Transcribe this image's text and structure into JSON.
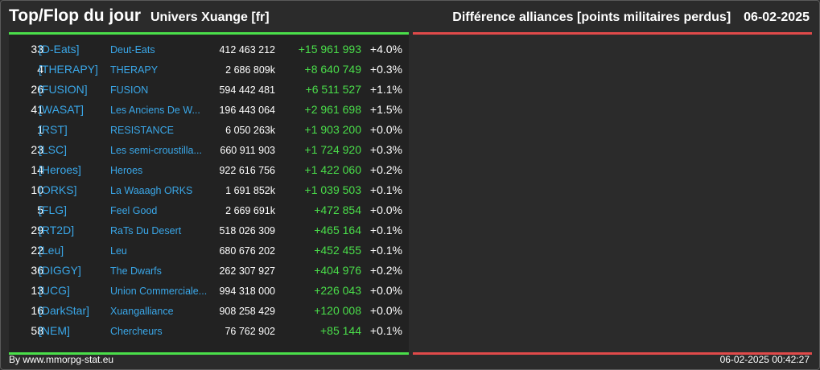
{
  "header": {
    "title": "Top/Flop du jour",
    "universe": "Univers Xuange [fr]",
    "subtitle": "Différence alliances [points militaires perdus]",
    "date": "06-02-2025"
  },
  "colors": {
    "accent_top": "#4ade4a",
    "accent_flop": "#e04a4a",
    "link": "#3aa7e8",
    "background": "#2b2b2b"
  },
  "top_rows": [
    {
      "rank": "33",
      "tag": "[D-Eats]",
      "name": "Deut-Eats",
      "points": "412 463 212",
      "diff": "+15 961 993",
      "pct": "+4.0%"
    },
    {
      "rank": "4",
      "tag": "[THERAPY]",
      "name": "THERAPY",
      "points": "2 686 809k",
      "diff": "+8 640 749",
      "pct": "+0.3%"
    },
    {
      "rank": "26",
      "tag": "[FUSION]",
      "name": "FUSION",
      "points": "594 442 481",
      "diff": "+6 511 527",
      "pct": "+1.1%"
    },
    {
      "rank": "41",
      "tag": "[WASAT]",
      "name": "Les Anciens De W...",
      "points": "196 443 064",
      "diff": "+2 961 698",
      "pct": "+1.5%"
    },
    {
      "rank": "1",
      "tag": "[RST]",
      "name": "RESISTANCE",
      "points": "6 050 263k",
      "diff": "+1 903 200",
      "pct": "+0.0%"
    },
    {
      "rank": "23",
      "tag": "[LSC]",
      "name": "Les semi-croustilla...",
      "points": "660 911 903",
      "diff": "+1 724 920",
      "pct": "+0.3%"
    },
    {
      "rank": "14",
      "tag": "[Heroes]",
      "name": "Heroes",
      "points": "922 616 756",
      "diff": "+1 422 060",
      "pct": "+0.2%"
    },
    {
      "rank": "10",
      "tag": "[ORKS]",
      "name": "La Waaagh ORKS",
      "points": "1 691 852k",
      "diff": "+1 039 503",
      "pct": "+0.1%"
    },
    {
      "rank": "5",
      "tag": "[FLG]",
      "name": "Feel Good",
      "points": "2 669 691k",
      "diff": "+472 854",
      "pct": "+0.0%"
    },
    {
      "rank": "29",
      "tag": "[RT2D]",
      "name": "RaTs Du Desert",
      "points": "518 026 309",
      "diff": "+465 164",
      "pct": "+0.1%"
    },
    {
      "rank": "22",
      "tag": "[Leu]",
      "name": "Leu",
      "points": "680 676 202",
      "diff": "+452 455",
      "pct": "+0.1%"
    },
    {
      "rank": "36",
      "tag": "[DIGGY]",
      "name": "The Dwarfs",
      "points": "262 307 927",
      "diff": "+404 976",
      "pct": "+0.2%"
    },
    {
      "rank": "13",
      "tag": "[UCG]",
      "name": "Union Commerciale...",
      "points": "994 318 000",
      "diff": "+226 043",
      "pct": "+0.0%"
    },
    {
      "rank": "16",
      "tag": "[DarkStar]",
      "name": "Xuangalliance",
      "points": "908 258 429",
      "diff": "+120 008",
      "pct": "+0.0%"
    },
    {
      "rank": "58",
      "tag": "[NEM]",
      "name": "Chercheurs",
      "points": "76 762 902",
      "diff": "+85 144",
      "pct": "+0.1%"
    }
  ],
  "footer": {
    "source": "By www.mmorpg-stat.eu",
    "timestamp": "06-02-2025 00:42:27"
  }
}
